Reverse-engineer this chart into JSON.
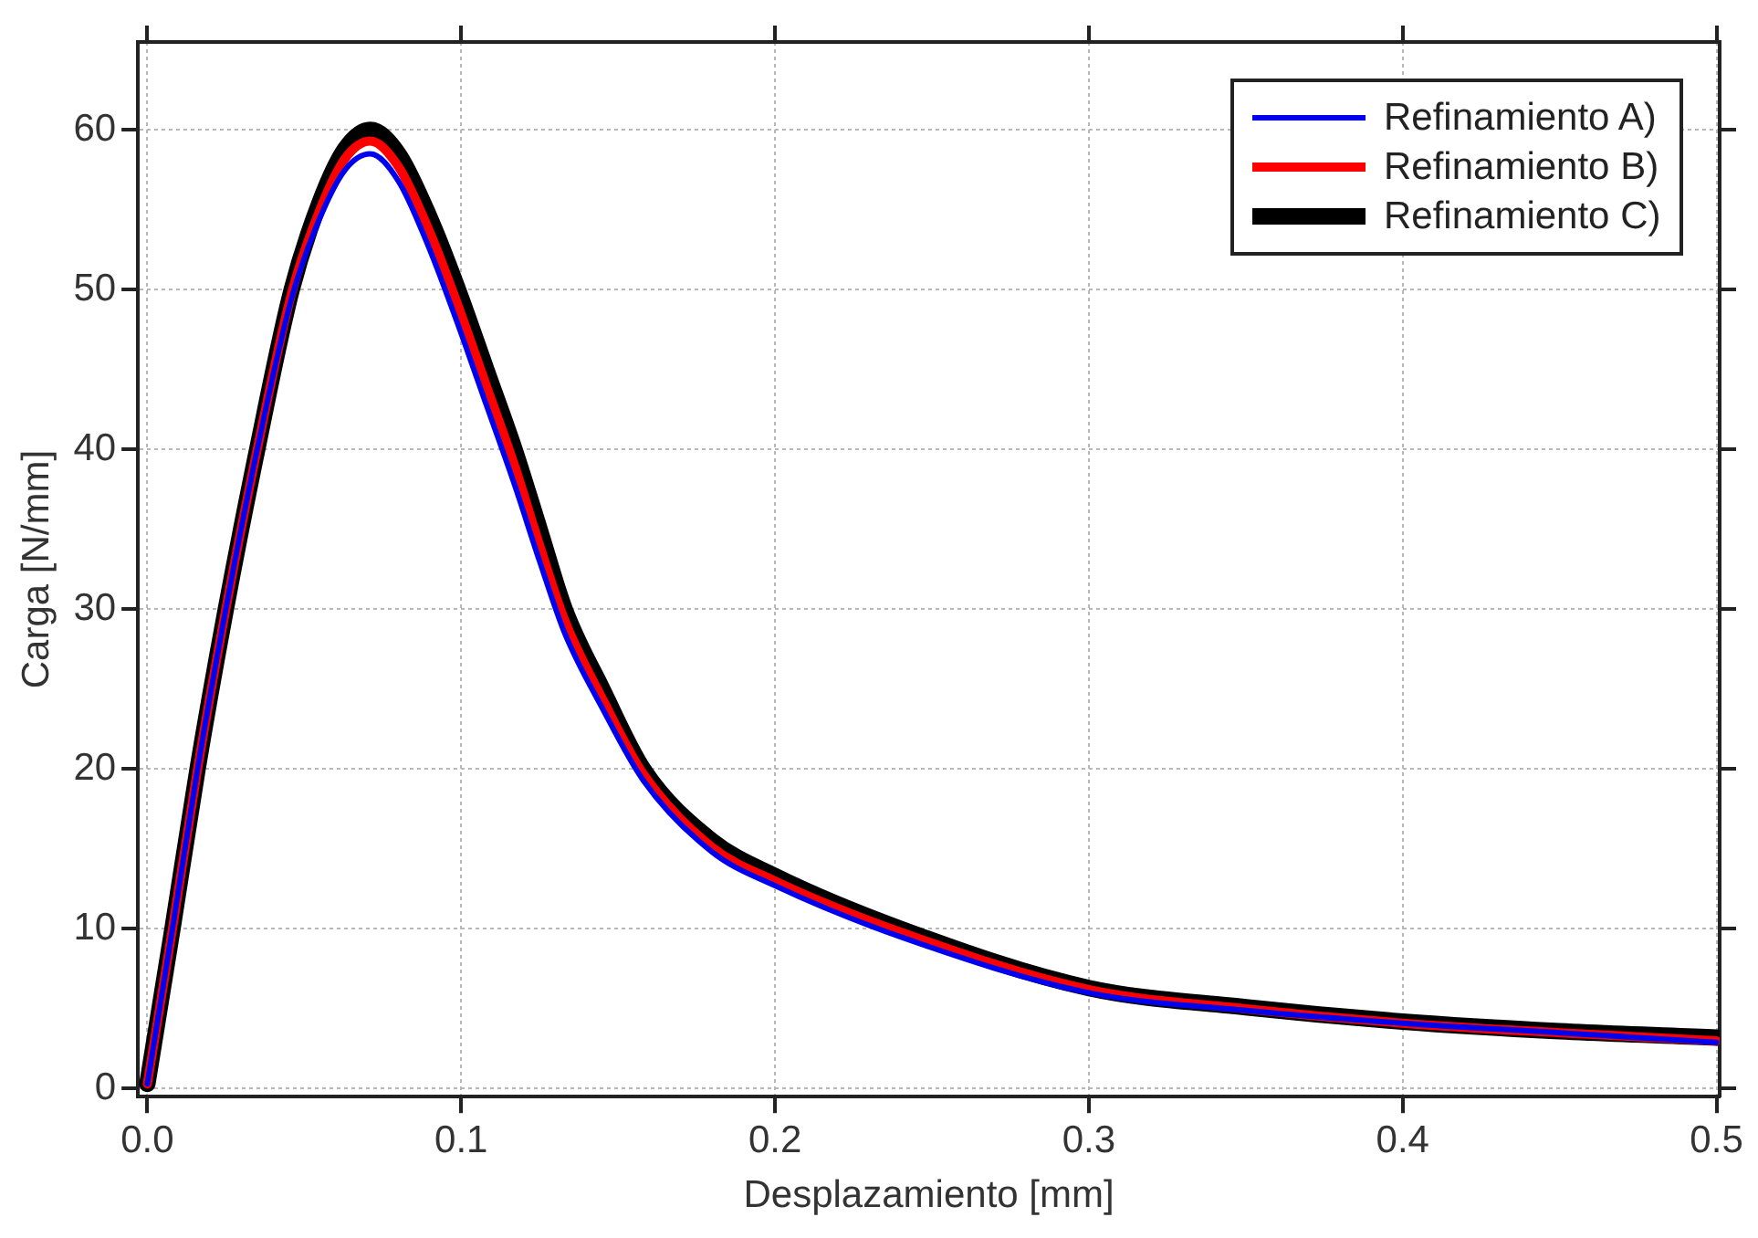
{
  "chart_data": {
    "type": "line",
    "xlabel": "Desplazamiento [mm]",
    "ylabel": "Carga [N/mm]",
    "xlim": [
      -0.003,
      0.501
    ],
    "ylim": [
      -0.5,
      65.5
    ],
    "xticks": [
      {
        "value": 0,
        "label": "0.0"
      },
      0.1,
      0.2,
      0.3,
      0.4,
      0.5
    ],
    "yticks": [
      0,
      10,
      20,
      30,
      40,
      50,
      60
    ],
    "grid": true,
    "legend": "top right",
    "marker": "none",
    "line_style": "solid",
    "x": [
      0,
      0.008,
      0.016,
      0.025,
      0.035,
      0.046,
      0.055,
      0.063,
      0.071,
      0.08,
      0.09,
      0.099,
      0.108,
      0.117,
      0.125,
      0.133,
      0.145,
      0.158,
      0.18,
      0.2,
      0.24,
      0.3,
      0.35,
      0.4,
      0.45,
      0.5
    ],
    "series": [
      {
        "name": "Refinamiento A)",
        "color": "#0000ee",
        "values": [
          0.3,
          10,
          20,
          30,
          40,
          49.5,
          54.5,
          57.5,
          58.5,
          56.8,
          52.5,
          47.8,
          42.8,
          37.8,
          33,
          28.5,
          23.8,
          19.3,
          14.8,
          12.7,
          9.5,
          6,
          4.9,
          4.1,
          3.5,
          2.9
        ]
      },
      {
        "name": "Refinamiento B)",
        "color": "#ff0000",
        "values": [
          0.3,
          10,
          20,
          30,
          40,
          49.8,
          55,
          58.2,
          59.3,
          57.7,
          53.6,
          49,
          44,
          39,
          34,
          29.3,
          24.4,
          19.7,
          15.1,
          13,
          9.8,
          6.2,
          5,
          4.1,
          3.5,
          3
        ]
      },
      {
        "name": "Refinamiento C)",
        "color": "#000000",
        "values": [
          0.3,
          10,
          20,
          30,
          40,
          50,
          55.5,
          58.8,
          60,
          58.5,
          54.5,
          50,
          45,
          40,
          35,
          30,
          25,
          20,
          15.5,
          13.3,
          10,
          6.3,
          5.1,
          4.2,
          3.6,
          3.2
        ]
      }
    ]
  }
}
